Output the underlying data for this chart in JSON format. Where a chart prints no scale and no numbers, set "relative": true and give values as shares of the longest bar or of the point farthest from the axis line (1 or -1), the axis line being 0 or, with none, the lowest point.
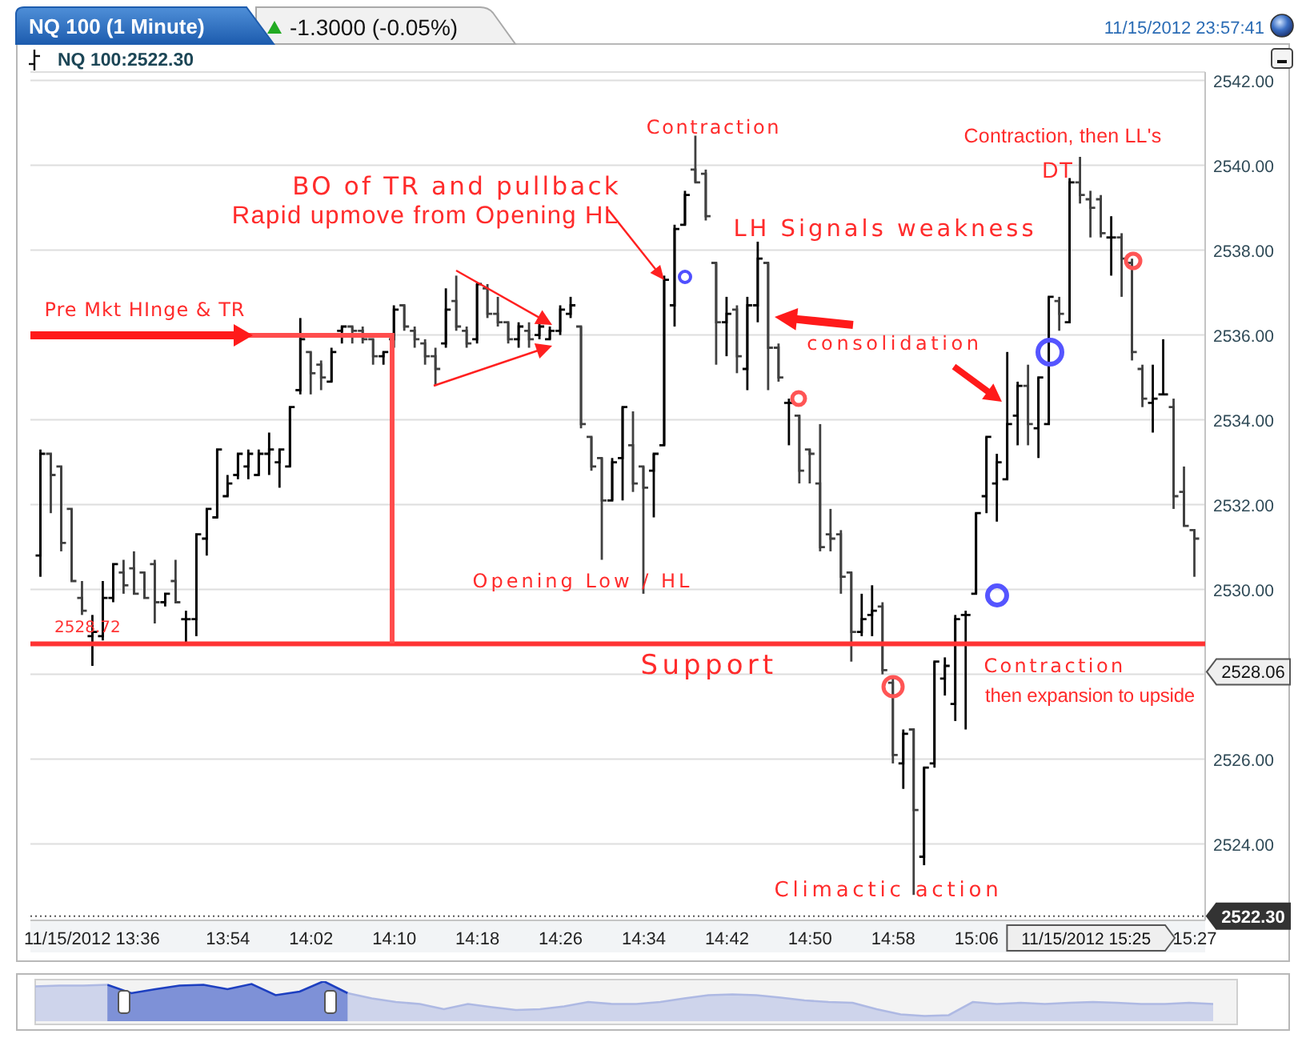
{
  "chart_data": [
    {
      "type": "candlestick",
      "title": "NQ 100 (1 Minute)",
      "subtitle": "-1.3000 (-0.05%)",
      "colors": [
        "#000000",
        "#404040",
        "#404040",
        "#404040",
        "#404040",
        "#000000",
        "#000000",
        "#000000",
        "#404040",
        "#404040",
        "#404040",
        "#404040",
        "#000000",
        "#404040",
        "#000000",
        "#000000",
        "#000000",
        "#000000",
        "#000000",
        "#000000",
        "#000000",
        "#000000",
        "#000000",
        "#000000",
        "#000000",
        "#000000",
        "#404040",
        "#404040",
        "#000000",
        "#000000",
        "#404040",
        "#404040",
        "#404040",
        "#000000",
        "#000000",
        "#404040",
        "#404040",
        "#404040",
        "#404040",
        "#000000",
        "#404040",
        "#404040",
        "#000000",
        "#404040",
        "#404040",
        "#404040",
        "#000000",
        "#404040",
        "#000000",
        "#000000",
        "#000000",
        "#000000",
        "#404040",
        "#404040",
        "#404040",
        "#000000",
        "#000000",
        "#404040",
        "#404040",
        "#000000",
        "#000000",
        "#000000",
        "#000000",
        "#404040",
        "#404040",
        "#404040",
        "#000000",
        "#404040",
        "#000000",
        "#000000",
        "#404040",
        "#404040",
        "#000000",
        "#404040",
        "#404040",
        "#404040",
        "#404040",
        "#404040",
        "#404040",
        "#000000",
        "#000000",
        "#404040",
        "#404040",
        "#000000",
        "#404040",
        "#000000",
        "#000000",
        "#000000",
        "#000000",
        "#000000",
        "#000000",
        "#000000",
        "#000000",
        "#000000",
        "#000000",
        "#404040",
        "#000000",
        "#000000",
        "#404040",
        "#000000",
        "#404040",
        "#404040",
        "#404040",
        "#000000",
        "#404040",
        "#404040",
        "#404040",
        "#000000",
        "#000000",
        "#404040",
        "#404040",
        "#404040"
      ],
      "x": [
        "2012-11-15T13:36",
        "2012-11-15T13:37",
        "2012-11-15T13:38",
        "2012-11-15T13:39",
        "2012-11-15T13:40",
        "2012-11-15T13:41",
        "2012-11-15T13:42",
        "2012-11-15T13:43",
        "2012-11-15T13:44",
        "2012-11-15T13:45",
        "2012-11-15T13:46",
        "2012-11-15T13:47",
        "2012-11-15T13:48",
        "2012-11-15T13:49",
        "2012-11-15T13:50",
        "2012-11-15T13:51",
        "2012-11-15T13:52",
        "2012-11-15T13:53",
        "2012-11-15T13:54",
        "2012-11-15T13:55",
        "2012-11-15T13:56",
        "2012-11-15T13:57",
        "2012-11-15T13:58",
        "2012-11-15T13:59",
        "2012-11-15T14:00",
        "2012-11-15T14:01",
        "2012-11-15T14:02",
        "2012-11-15T14:03",
        "2012-11-15T14:04",
        "2012-11-15T14:05",
        "2012-11-15T14:06",
        "2012-11-15T14:07",
        "2012-11-15T14:08",
        "2012-11-15T14:09",
        "2012-11-15T14:10",
        "2012-11-15T14:11",
        "2012-11-15T14:12",
        "2012-11-15T14:13",
        "2012-11-15T14:14",
        "2012-11-15T14:15",
        "2012-11-15T14:16",
        "2012-11-15T14:17",
        "2012-11-15T14:18",
        "2012-11-15T14:19",
        "2012-11-15T14:20",
        "2012-11-15T14:21",
        "2012-11-15T14:22",
        "2012-11-15T14:23",
        "2012-11-15T14:24",
        "2012-11-15T14:25",
        "2012-11-15T14:26",
        "2012-11-15T14:27",
        "2012-11-15T14:28",
        "2012-11-15T14:29",
        "2012-11-15T14:30",
        "2012-11-15T14:31",
        "2012-11-15T14:32",
        "2012-11-15T14:33",
        "2012-11-15T14:34",
        "2012-11-15T14:35",
        "2012-11-15T14:36",
        "2012-11-15T14:37",
        "2012-11-15T14:38",
        "2012-11-15T14:39",
        "2012-11-15T14:40",
        "2012-11-15T14:41",
        "2012-11-15T14:42",
        "2012-11-15T14:43",
        "2012-11-15T14:44",
        "2012-11-15T14:45",
        "2012-11-15T14:46",
        "2012-11-15T14:47",
        "2012-11-15T14:48",
        "2012-11-15T14:49",
        "2012-11-15T14:50",
        "2012-11-15T14:51",
        "2012-11-15T14:52",
        "2012-11-15T14:53",
        "2012-11-15T14:54",
        "2012-11-15T14:55",
        "2012-11-15T14:56",
        "2012-11-15T14:57",
        "2012-11-15T14:58",
        "2012-11-15T14:59",
        "2012-11-15T15:00",
        "2012-11-15T15:01",
        "2012-11-15T15:02",
        "2012-11-15T15:03",
        "2012-11-15T15:04",
        "2012-11-15T15:05",
        "2012-11-15T15:06",
        "2012-11-15T15:07",
        "2012-11-15T15:08",
        "2012-11-15T15:09",
        "2012-11-15T15:10",
        "2012-11-15T15:11",
        "2012-11-15T15:12",
        "2012-11-15T15:13",
        "2012-11-15T15:14",
        "2012-11-15T15:15",
        "2012-11-15T15:16",
        "2012-11-15T15:17",
        "2012-11-15T15:18",
        "2012-11-15T15:19",
        "2012-11-15T15:20",
        "2012-11-15T15:21",
        "2012-11-15T15:22",
        "2012-11-15T15:23",
        "2012-11-15T15:24",
        "2012-11-15T15:25",
        "2012-11-15T15:26",
        "2012-11-15T15:27"
      ],
      "ohlc": [
        [
          2530.8,
          2533.3,
          2530.3,
          2533.2
        ],
        [
          2533.2,
          2533.2,
          2531.8,
          2532.7
        ],
        [
          2532.9,
          2532.9,
          2530.9,
          2531.1
        ],
        [
          2531.9,
          2531.9,
          2530.2,
          2530.2
        ],
        [
          2529.8,
          2530.2,
          2529.4,
          2529.5
        ],
        [
          2528.9,
          2529.4,
          2528.2,
          2529.0
        ],
        [
          2528.9,
          2530.2,
          2528.8,
          2529.8
        ],
        [
          2529.8,
          2530.6,
          2529.7,
          2530.6
        ],
        [
          2530.4,
          2530.7,
          2529.9,
          2530.1
        ],
        [
          2530.5,
          2530.9,
          2529.9,
          2529.9
        ],
        [
          2530.4,
          2530.4,
          2529.8,
          2529.8
        ],
        [
          2530.6,
          2530.7,
          2529.2,
          2529.7
        ],
        [
          2529.7,
          2529.9,
          2529.6,
          2529.9
        ],
        [
          2530.2,
          2530.7,
          2529.7,
          2529.7
        ],
        [
          2529.3,
          2529.5,
          2528.7,
          2529.3
        ],
        [
          2529.3,
          2531.3,
          2528.9,
          2531.3
        ],
        [
          2531.2,
          2531.9,
          2530.8,
          2531.9
        ],
        [
          2531.7,
          2533.3,
          2531.7,
          2533.3
        ],
        [
          2532.2,
          2532.7,
          2532.2,
          2532.5
        ],
        [
          2532.7,
          2533.2,
          2532.6,
          2533.2
        ],
        [
          2532.9,
          2533.3,
          2532.6,
          2533.2
        ],
        [
          2532.7,
          2533.3,
          2532.7,
          2533.2
        ],
        [
          2533.2,
          2533.7,
          2532.7,
          2533.3
        ],
        [
          2533.0,
          2533.3,
          2532.4,
          2533.3
        ],
        [
          2532.9,
          2534.3,
          2532.9,
          2534.3
        ],
        [
          2534.7,
          2536.4,
          2534.6,
          2535.9
        ],
        [
          2535.6,
          2535.6,
          2534.6,
          2535.1
        ],
        [
          2535.3,
          2535.4,
          2534.7,
          2535.0
        ],
        [
          2534.9,
          2535.7,
          2534.9,
          2535.6
        ],
        [
          2536.1,
          2536.2,
          2535.8,
          2536.2
        ],
        [
          2536.2,
          2536.2,
          2535.8,
          2536.1
        ],
        [
          2536.1,
          2536.2,
          2535.8,
          2535.9
        ],
        [
          2535.9,
          2535.9,
          2535.3,
          2535.5
        ],
        [
          2535.5,
          2535.6,
          2535.3,
          2535.6
        ],
        [
          2535.9,
          2536.7,
          2535.7,
          2536.6
        ],
        [
          2536.7,
          2536.7,
          2536.1,
          2536.2
        ],
        [
          2536.1,
          2536.2,
          2535.7,
          2535.9
        ],
        [
          2535.8,
          2535.9,
          2535.3,
          2535.5
        ],
        [
          2535.5,
          2535.7,
          2534.8,
          2535.2
        ],
        [
          2535.8,
          2537.1,
          2535.7,
          2536.6
        ],
        [
          2536.8,
          2537.4,
          2536.1,
          2536.2
        ],
        [
          2536.1,
          2536.2,
          2535.7,
          2535.8
        ],
        [
          2535.9,
          2537.2,
          2535.8,
          2537.2
        ],
        [
          2537.1,
          2537.2,
          2536.4,
          2536.5
        ],
        [
          2536.5,
          2536.9,
          2536.2,
          2536.3
        ],
        [
          2536.3,
          2536.3,
          2535.8,
          2535.9
        ],
        [
          2535.9,
          2536.3,
          2535.7,
          2536.2
        ],
        [
          2536.1,
          2536.3,
          2535.7,
          2535.9
        ],
        [
          2536.0,
          2536.3,
          2535.9,
          2536.2
        ],
        [
          2535.9,
          2536.2,
          2535.9,
          2536.1
        ],
        [
          2536.1,
          2536.7,
          2536.0,
          2536.6
        ],
        [
          2536.5,
          2536.9,
          2536.4,
          2536.7
        ],
        [
          2536.2,
          2536.2,
          2533.8,
          2533.9
        ],
        [
          2533.6,
          2533.6,
          2532.8,
          2532.9
        ],
        [
          2533.1,
          2533.1,
          2530.7,
          2532.1
        ],
        [
          2532.1,
          2533.1,
          2532.1,
          2533.0
        ],
        [
          2533.1,
          2534.3,
          2532.1,
          2534.3
        ],
        [
          2533.4,
          2534.2,
          2532.3,
          2532.5
        ],
        [
          2532.9,
          2532.9,
          2529.9,
          2532.4
        ],
        [
          2532.8,
          2533.2,
          2531.7,
          2533.2
        ],
        [
          2533.4,
          2537.4,
          2533.4,
          2537.3
        ],
        [
          2536.7,
          2538.6,
          2536.2,
          2538.5
        ],
        [
          2538.6,
          2539.4,
          2538.6,
          2539.3
        ],
        [
          2539.9,
          2540.7,
          2539.6,
          2539.6
        ],
        [
          2539.8,
          2539.9,
          2538.7,
          2538.8
        ],
        [
          2537.7,
          2537.7,
          2535.3,
          2536.3
        ],
        [
          2536.3,
          2536.9,
          2535.5,
          2536.5
        ],
        [
          2536.6,
          2536.7,
          2535.1,
          2535.5
        ],
        [
          2535.2,
          2536.9,
          2534.7,
          2536.7
        ],
        [
          2536.7,
          2538.2,
          2536.3,
          2537.8
        ],
        [
          2537.7,
          2537.7,
          2534.7,
          2535.7
        ],
        [
          2535.7,
          2535.8,
          2534.9,
          2535.0
        ],
        [
          2534.4,
          2534.5,
          2533.4,
          2534.4
        ],
        [
          2534.1,
          2534.1,
          2532.5,
          2532.8
        ],
        [
          2533.3,
          2533.3,
          2532.5,
          2533.2
        ],
        [
          2532.5,
          2533.9,
          2530.9,
          2531.0
        ],
        [
          2531.3,
          2531.9,
          2530.9,
          2531.2
        ],
        [
          2531.3,
          2531.4,
          2529.9,
          2530.3
        ],
        [
          2530.4,
          2530.4,
          2528.3,
          2529.0
        ],
        [
          2529.0,
          2529.9,
          2528.9,
          2529.3
        ],
        [
          2529.4,
          2530.1,
          2528.9,
          2529.5
        ],
        [
          2529.6,
          2529.7,
          2528.0,
          2528.1
        ],
        [
          2527.8,
          2527.9,
          2525.9,
          2526.1
        ],
        [
          2525.9,
          2526.7,
          2525.3,
          2526.6
        ],
        [
          2526.7,
          2526.7,
          2522.8,
          2524.8
        ],
        [
          2523.7,
          2525.8,
          2523.5,
          2525.8
        ],
        [
          2525.9,
          2528.3,
          2525.8,
          2528.3
        ],
        [
          2527.9,
          2528.4,
          2527.5,
          2528.2
        ],
        [
          2527.3,
          2529.4,
          2526.9,
          2529.3
        ],
        [
          2529.4,
          2529.5,
          2526.7,
          2529.4
        ],
        [
          2529.9,
          2531.8,
          2529.9,
          2531.8
        ],
        [
          2532.2,
          2533.6,
          2531.8,
          2533.6
        ],
        [
          2532.5,
          2533.2,
          2531.6,
          2533.0
        ],
        [
          2532.6,
          2535.6,
          2532.6,
          2533.9
        ],
        [
          2534.1,
          2534.9,
          2533.4,
          2534.8
        ],
        [
          2534.8,
          2535.3,
          2533.4,
          2533.9
        ],
        [
          2533.8,
          2535.0,
          2533.1,
          2535.0
        ],
        [
          2533.9,
          2536.9,
          2533.9,
          2536.9
        ],
        [
          2536.8,
          2536.9,
          2536.1,
          2536.5
        ],
        [
          2536.3,
          2539.7,
          2536.3,
          2539.6
        ],
        [
          2539.6,
          2540.2,
          2539.1,
          2539.3
        ],
        [
          2539.2,
          2539.4,
          2538.3,
          2539.0
        ],
        [
          2539.2,
          2539.3,
          2538.3,
          2538.4
        ],
        [
          2538.3,
          2538.8,
          2537.4,
          2538.3
        ],
        [
          2538.3,
          2538.4,
          2536.9,
          2537.8
        ],
        [
          2537.7,
          2537.8,
          2535.4,
          2535.6
        ],
        [
          2535.2,
          2535.3,
          2534.3,
          2534.5
        ],
        [
          2534.4,
          2535.3,
          2533.7,
          2534.5
        ],
        [
          2534.6,
          2535.9,
          2534.6,
          2534.6
        ],
        [
          2534.3,
          2534.5,
          2531.9,
          2532.2
        ],
        [
          2532.3,
          2532.9,
          2531.5,
          2531.5
        ],
        [
          2531.4,
          2531.4,
          2530.3,
          2531.2
        ]
      ],
      "xlim": [
        "2012-11-15T13:35",
        "2012-11-15T15:28"
      ],
      "xticks": [
        {
          "value": "2012-11-15T13:54",
          "label": "13:54"
        },
        {
          "value": "2012-11-15T14:02",
          "label": "14:02"
        },
        {
          "value": "2012-11-15T14:10",
          "label": "14:10"
        },
        {
          "value": "2012-11-15T14:18",
          "label": "14:18"
        },
        {
          "value": "2012-11-15T14:26",
          "label": "14:26"
        },
        {
          "value": "2012-11-15T14:34",
          "label": "14:34"
        },
        {
          "value": "2012-11-15T14:42",
          "label": "14:42"
        },
        {
          "value": "2012-11-15T14:50",
          "label": "14:50"
        },
        {
          "value": "2012-11-15T14:58",
          "label": "14:58"
        },
        {
          "value": "2012-11-15T15:06",
          "label": "15:06"
        },
        {
          "value": "2012-11-15T15:27",
          "label": "15:27"
        }
      ],
      "ylim": [
        2522.2,
        2542.2
      ],
      "yticks": [
        {
          "value": 2524,
          "label": "2524.00"
        },
        {
          "value": 2526,
          "label": "2526.00"
        },
        {
          "value": 2528,
          "label": null
        },
        {
          "value": 2530,
          "label": "2530.00"
        },
        {
          "value": 2532,
          "label": "2532.00"
        },
        {
          "value": 2534,
          "label": "2534.00"
        },
        {
          "value": 2536,
          "label": "2536.00"
        },
        {
          "value": 2538,
          "label": "2538.00"
        },
        {
          "value": 2540,
          "label": "2540.00"
        },
        {
          "value": 2542,
          "label": "2542.00"
        }
      ],
      "grid": "y",
      "ref_lines": [
        {
          "axis": "y",
          "value": 2528.72,
          "label": "2528.72",
          "color": "#ff3333"
        },
        {
          "axis": "y",
          "value": 2522.3,
          "label": "2522.30",
          "color": "#555555",
          "line_style": "dotted"
        }
      ],
      "annotations": [
        "11/15/2012 23:57:41",
        "NQ 100:2522.30",
        "11/15/2012 13:36",
        "2528.06",
        "11/15/2012 15:25",
        "Pre Mkt HInge & TR",
        "BO of TR and pullback",
        "Rapid upmove from Opening HL",
        "Contraction",
        "LH Signals weakness",
        "consolidation",
        "Opening Low / HL",
        "Support",
        "Contraction, then LL's",
        "DT",
        "Contraction",
        "then expansion to upside",
        "Climactic action"
      ]
    },
    {
      "type": "area",
      "relative": true,
      "categories": [
        null,
        null,
        null,
        null,
        null,
        null,
        null,
        null,
        null,
        null,
        null,
        null,
        null,
        null,
        null,
        null,
        null,
        null,
        null,
        null,
        null,
        null,
        null,
        null,
        null,
        null,
        null,
        null,
        null,
        null,
        null,
        null,
        null,
        null,
        null,
        null,
        null,
        null,
        null,
        null,
        null,
        null,
        null,
        null,
        null,
        null,
        null,
        null,
        null,
        null
      ],
      "series": [
        {
          "color": "#1d3fc0",
          "values": [
            null,
            null,
            null,
            0.91,
            0.7,
            0.8,
            0.89,
            0.91,
            0.8,
            0.93,
            0.65,
            0.74,
            1,
            0.7,
            null,
            null,
            null,
            null,
            null,
            null,
            null,
            null,
            null,
            null,
            null,
            null,
            null,
            null,
            null,
            null,
            null,
            null,
            null,
            null,
            null,
            null,
            null,
            null,
            null,
            null,
            null,
            null,
            null,
            null,
            null,
            null,
            null,
            null,
            null,
            null
          ]
        },
        {
          "color": "#aeb9e3",
          "values": [
            0.87,
            0.89,
            0.89,
            0.91,
            null,
            null,
            null,
            null,
            null,
            null,
            null,
            null,
            null,
            0.7,
            0.57,
            0.48,
            0.43,
            0.3,
            0.43,
            0.35,
            0.28,
            0.3,
            0.37,
            0.48,
            0.43,
            0.43,
            0.48,
            0.57,
            0.65,
            0.67,
            0.65,
            0.59,
            0.52,
            0.48,
            0.46,
            0.3,
            0.17,
            0.13,
            0.15,
            0.48,
            0.43,
            0.46,
            0.43,
            0.46,
            0.48,
            0.46,
            0.43,
            0.43,
            0.46,
            0.43
          ]
        }
      ]
    }
  ]
}
